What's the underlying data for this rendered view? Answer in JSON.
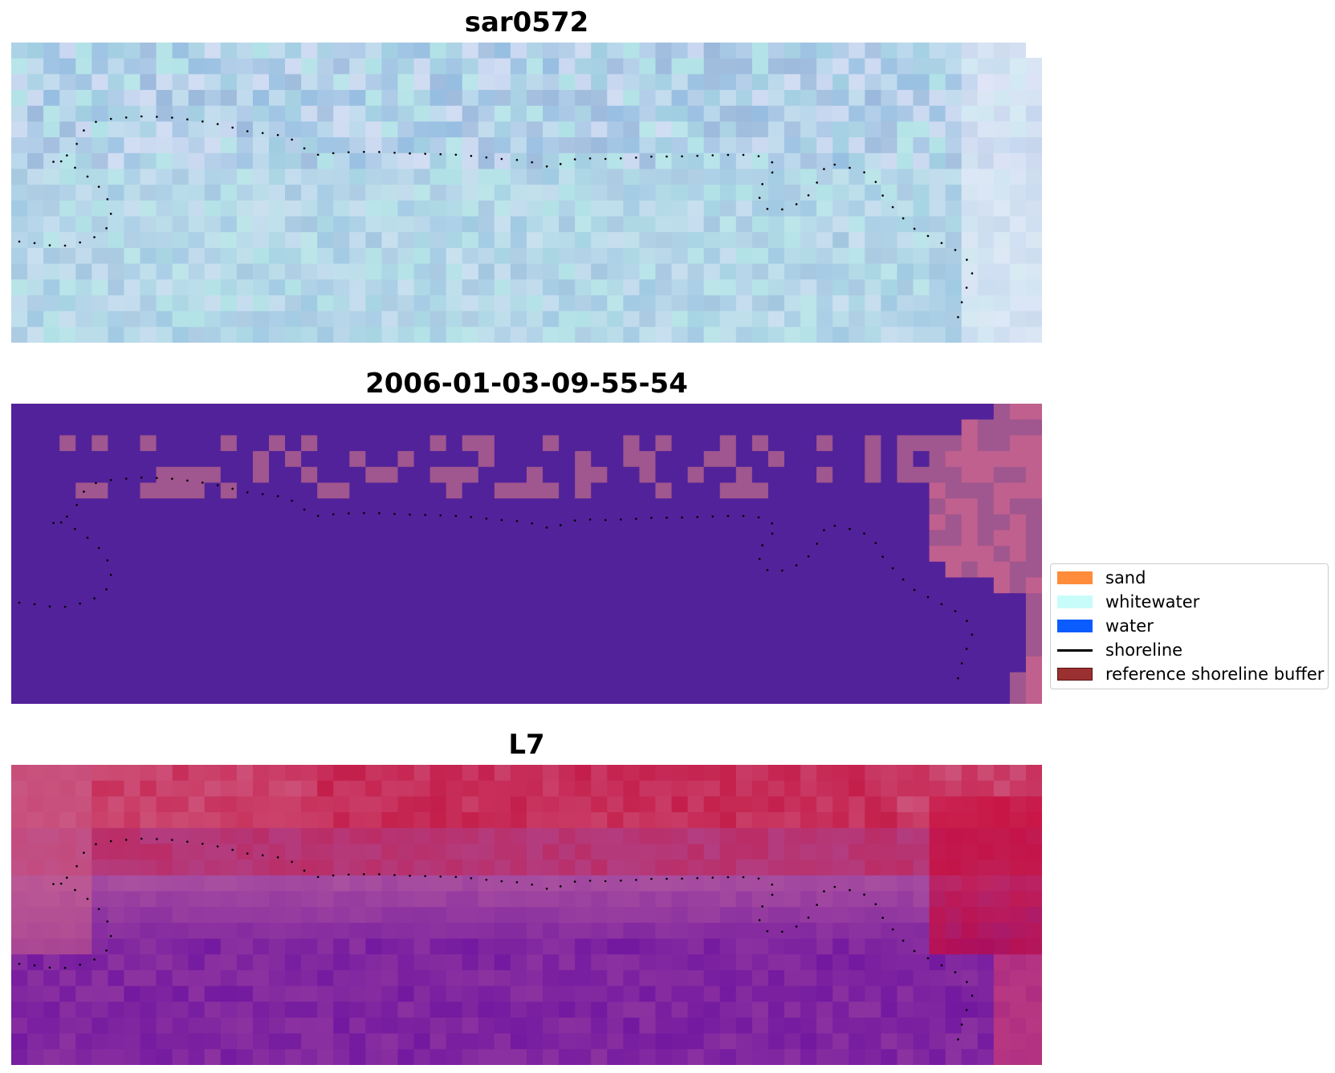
{
  "panels": [
    {
      "title": "sar0572",
      "style": "rgb"
    },
    {
      "title": "2006-01-03-09-55-54",
      "style": "classified"
    },
    {
      "title": "L7",
      "style": "index"
    }
  ],
  "legend": {
    "items": [
      {
        "label": "sand",
        "color": "#ff8c3a",
        "kind": "patch"
      },
      {
        "label": "whitewater",
        "color": "#c8fcfa",
        "kind": "patch"
      },
      {
        "label": "water",
        "color": "#0b5cff",
        "kind": "patch"
      },
      {
        "label": "shoreline",
        "color": "#000000",
        "kind": "line"
      },
      {
        "label": "reference shoreline buffer",
        "color": "#9b3030",
        "kind": "patch",
        "edge": "#5a1010"
      }
    ]
  },
  "colors": {
    "classified_background": "#52229a",
    "classified_patch": "#a0568e",
    "classified_patch_light": "#c0608e"
  }
}
